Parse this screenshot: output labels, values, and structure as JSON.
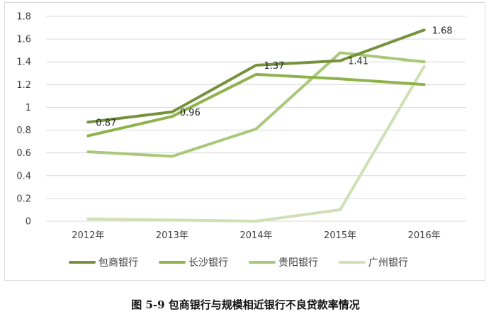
{
  "caption": "图 5-9 包商银行与规模相近银行不良贷款率情况",
  "chart_data": {
    "type": "line",
    "title": "",
    "xlabel": "",
    "ylabel": "",
    "categories": [
      "2012年",
      "2013年",
      "2014年",
      "2015年",
      "2016年"
    ],
    "ylim": [
      0,
      1.8
    ],
    "yticks": [
      0,
      0.2,
      0.4,
      0.6,
      0.8,
      1,
      1.2,
      1.4,
      1.6,
      1.8
    ],
    "grid": true,
    "legend_position": "bottom",
    "series": [
      {
        "name": "包商银行",
        "values": [
          0.87,
          0.96,
          1.37,
          1.41,
          1.68
        ],
        "color": "#76923c",
        "data_labels": [
          "0.87",
          "0.96",
          "1.37",
          "1.41",
          "1.68"
        ]
      },
      {
        "name": "长沙银行",
        "values": [
          0.75,
          0.92,
          1.29,
          1.25,
          1.2
        ],
        "color": "#8db34a"
      },
      {
        "name": "贵阳银行",
        "values": [
          0.61,
          0.57,
          0.81,
          1.48,
          1.4
        ],
        "color": "#a9c97a"
      },
      {
        "name": "广州银行",
        "values": [
          0.02,
          0.01,
          0.0,
          0.1,
          1.36
        ],
        "color": "#cfe0b4"
      }
    ]
  }
}
